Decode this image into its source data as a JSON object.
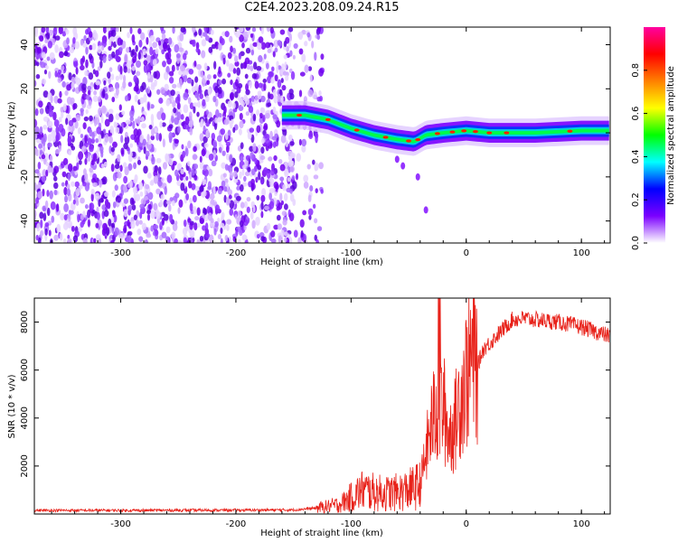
{
  "title": "C2E4.2023.208.09.24.R15",
  "chart_data": [
    {
      "type": "heatmap",
      "xlabel": "Height of straight line (km)",
      "ylabel": "Frequency (Hz)",
      "xlim": [
        -375,
        125
      ],
      "ylim": [
        -50,
        48
      ],
      "xticks": [
        -300,
        -200,
        -100,
        0,
        100
      ],
      "yticks": [
        -40,
        -20,
        0,
        20,
        40
      ],
      "grid": false,
      "colorbar": {
        "label": "Normalized spectral amplitude",
        "range": [
          0.0,
          1.0
        ],
        "ticks": [
          0.0,
          0.2,
          0.4,
          0.6,
          0.8
        ],
        "colormap": [
          "#ffffff",
          "#7b00ff",
          "#0000ff",
          "#00ffff",
          "#00ff00",
          "#ffff00",
          "#ff8000",
          "#ff0000",
          "#ff00a0"
        ]
      },
      "ridge": {
        "x": [
          -160,
          -140,
          -120,
          -100,
          -80,
          -60,
          -45,
          -35,
          -20,
          0,
          20,
          60,
          100,
          125
        ],
        "y": [
          8,
          8,
          6,
          2,
          -1,
          -3,
          -4,
          -1,
          0,
          1,
          0,
          0,
          1,
          1
        ]
      },
      "noise_region_x": [
        -375,
        -125
      ]
    },
    {
      "type": "line",
      "xlabel": "Height of straight line (km)",
      "ylabel": "SNR (10 * v/v)",
      "xlim": [
        -375,
        125
      ],
      "ylim": [
        0,
        9000
      ],
      "xticks": [
        -300,
        -200,
        -100,
        0,
        100
      ],
      "yticks": [
        2000,
        4000,
        6000,
        8000
      ],
      "grid": false,
      "color": "#e8221a",
      "x": [
        -375,
        -300,
        -200,
        -150,
        -130,
        -110,
        -100,
        -90,
        -80,
        -70,
        -60,
        -50,
        -40,
        -35,
        -30,
        -25,
        -20,
        -15,
        -10,
        -5,
        0,
        5,
        10,
        15,
        20,
        30,
        40,
        50,
        60,
        80,
        100,
        125
      ],
      "y": [
        150,
        150,
        160,
        170,
        250,
        400,
        700,
        1000,
        900,
        850,
        900,
        1000,
        1200,
        2500,
        3800,
        4300,
        4500,
        3300,
        3700,
        5000,
        5700,
        6600,
        6200,
        6900,
        7100,
        7600,
        8100,
        8150,
        8100,
        8000,
        7800,
        7400
      ]
    }
  ]
}
